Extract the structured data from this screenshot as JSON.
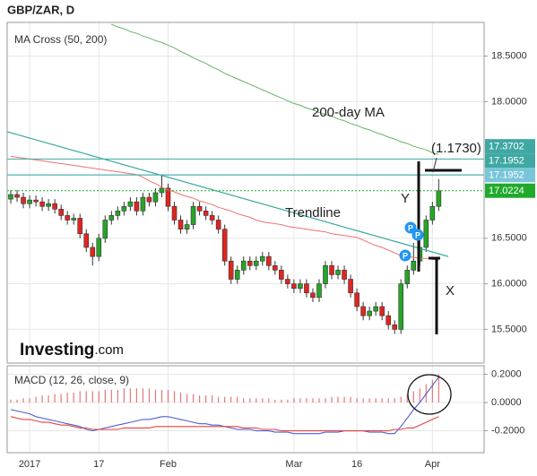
{
  "header": {
    "title": "GBP/ZAR, D"
  },
  "logo": {
    "brand": "Investing",
    "suffix": ".com"
  },
  "annotations": {
    "ma200": "200-day MA",
    "trendline": "Trendline",
    "target": "(1.1730)",
    "y": "Y",
    "x": "X",
    "markers": [
      "P",
      "P",
      "P"
    ]
  },
  "chart_data": [
    {
      "type": "candlestick",
      "title": "MA Cross (50, 200)",
      "ylim": [
        15.13,
        18.87
      ],
      "yticks": [
        {
          "value": 18.5,
          "label": "18.5000"
        },
        {
          "value": 18,
          "label": "18.0000"
        },
        {
          "value": 16.5,
          "label": "16.5000"
        },
        {
          "value": 16,
          "label": "16.0000"
        },
        {
          "value": 15.5,
          "label": "15.5000"
        }
      ],
      "up_color": "#26a526",
      "down_color": "#e0251f",
      "open": [
        16.93,
        16.98,
        16.95,
        16.88,
        16.92,
        16.9,
        16.85,
        16.88,
        16.82,
        16.75,
        16.7,
        16.72,
        16.55,
        16.4,
        16.3,
        16.5,
        16.7,
        16.75,
        16.8,
        16.85,
        16.9,
        16.8,
        16.95,
        16.9,
        17.0,
        17.05,
        16.85,
        16.7,
        16.6,
        16.65,
        16.85,
        16.8,
        16.75,
        16.7,
        16.6,
        16.25,
        16.05,
        16.15,
        16.25,
        16.2,
        16.25,
        16.3,
        16.2,
        16.15,
        16.05,
        16.0,
        15.95,
        16.0,
        15.9,
        15.85,
        16.0,
        16.2,
        16.1,
        16.15,
        16.05,
        15.9,
        15.75,
        15.65,
        15.7,
        15.75,
        15.65,
        15.55,
        15.5,
        16.0,
        16.15,
        16.25,
        16.4,
        16.7,
        16.85
      ],
      "high": [
        17.03,
        17.03,
        17.0,
        16.97,
        16.97,
        16.95,
        16.93,
        16.93,
        16.87,
        16.8,
        16.77,
        16.77,
        16.6,
        16.45,
        16.55,
        16.75,
        16.8,
        16.85,
        16.9,
        16.95,
        16.95,
        17.0,
        17.0,
        17.05,
        17.2,
        17.1,
        16.9,
        16.75,
        16.7,
        16.9,
        16.9,
        16.85,
        16.8,
        16.75,
        16.65,
        16.3,
        16.2,
        16.3,
        16.3,
        16.3,
        16.35,
        16.35,
        16.25,
        16.2,
        16.1,
        16.05,
        16.05,
        16.05,
        15.95,
        16.05,
        16.25,
        16.25,
        16.2,
        16.2,
        16.1,
        15.95,
        15.8,
        15.75,
        15.8,
        15.8,
        15.7,
        15.6,
        16.05,
        16.2,
        16.45,
        16.6,
        16.75,
        16.9,
        17.15
      ],
      "low": [
        16.88,
        16.9,
        16.83,
        16.83,
        16.85,
        16.8,
        16.8,
        16.77,
        16.7,
        16.65,
        16.65,
        16.5,
        16.35,
        16.2,
        16.25,
        16.45,
        16.65,
        16.7,
        16.75,
        16.8,
        16.75,
        16.75,
        16.85,
        16.85,
        16.95,
        16.8,
        16.65,
        16.55,
        16.55,
        16.6,
        16.75,
        16.7,
        16.65,
        16.55,
        16.2,
        16.0,
        16.0,
        16.1,
        16.15,
        16.15,
        16.2,
        16.15,
        16.1,
        16.0,
        15.95,
        15.9,
        15.9,
        15.85,
        15.8,
        15.8,
        15.95,
        16.05,
        16.05,
        16.0,
        15.85,
        15.7,
        15.6,
        15.6,
        15.65,
        15.6,
        15.5,
        15.45,
        15.45,
        15.95,
        16.1,
        16.2,
        16.35,
        16.65,
        16.8
      ],
      "close": [
        16.98,
        16.95,
        16.88,
        16.92,
        16.9,
        16.85,
        16.88,
        16.82,
        16.75,
        16.7,
        16.72,
        16.55,
        16.4,
        16.3,
        16.5,
        16.7,
        16.75,
        16.8,
        16.85,
        16.9,
        16.8,
        16.95,
        16.9,
        17.0,
        17.05,
        16.85,
        16.7,
        16.6,
        16.65,
        16.85,
        16.8,
        16.75,
        16.7,
        16.6,
        16.25,
        16.05,
        16.15,
        16.25,
        16.2,
        16.25,
        16.3,
        16.2,
        16.15,
        16.05,
        16.0,
        15.95,
        16.0,
        15.9,
        15.85,
        16.0,
        16.2,
        16.1,
        16.15,
        16.05,
        15.9,
        15.75,
        15.65,
        15.7,
        15.75,
        15.65,
        15.55,
        15.5,
        16.0,
        16.15,
        16.25,
        16.4,
        16.7,
        16.85,
        17.0224
      ],
      "lines": [
        {
          "color": "#f07070",
          "values": [
            17.4,
            17.39,
            17.38,
            17.37,
            17.36,
            17.35,
            17.34,
            17.33,
            17.32,
            17.31,
            17.3,
            17.29,
            17.28,
            17.27,
            17.26,
            17.25,
            17.24,
            17.23,
            17.22,
            17.21,
            17.2,
            17.17,
            17.13,
            17.1,
            17.06,
            17.03,
            17.01,
            16.98,
            16.96,
            16.94,
            16.91,
            16.89,
            16.87,
            16.84,
            16.82,
            16.8,
            16.77,
            16.75,
            16.73,
            16.7,
            16.68,
            16.67,
            16.66,
            16.65,
            16.63,
            16.62,
            16.61,
            16.6,
            16.59,
            16.58,
            16.57,
            16.55,
            16.54,
            16.53,
            16.52,
            16.51,
            16.48,
            16.45,
            16.42,
            16.4,
            16.37,
            16.34,
            16.31,
            16.3,
            16.29,
            16.28,
            16.28,
            16.27,
            16.26
          ]
        },
        {
          "color": "#66b266",
          "values": [
            null,
            null,
            null,
            null,
            null,
            null,
            null,
            null,
            null,
            null,
            null,
            null,
            null,
            null,
            null,
            null,
            18.85,
            18.82,
            18.8,
            18.77,
            18.75,
            18.72,
            18.7,
            18.67,
            18.65,
            18.62,
            18.59,
            18.55,
            18.52,
            18.48,
            18.45,
            18.42,
            18.38,
            18.35,
            18.31,
            18.28,
            18.25,
            18.22,
            18.19,
            18.16,
            18.13,
            18.1,
            18.07,
            18.04,
            18.01,
            17.98,
            17.96,
            17.93,
            17.91,
            17.88,
            17.86,
            17.84,
            17.81,
            17.79,
            17.76,
            17.74,
            17.71,
            17.69,
            17.66,
            17.64,
            17.61,
            17.59,
            17.56,
            17.54,
            17.51,
            17.49,
            17.47,
            17.44,
            17.42
          ]
        }
      ],
      "trendline": {
        "color": "#3aa9a0",
        "values": [
          17.67,
          16.3
        ]
      },
      "price_lines": [
        {
          "value": 17.3702,
          "color": "#3fa8a3",
          "dotted": false
        },
        {
          "value": 17.1952,
          "color": "#79c6da",
          "dotted": false
        },
        {
          "value": 17.1952,
          "color": "#3fa8a3",
          "dotted": false
        },
        {
          "value": 17.0224,
          "color": "#1faa2c",
          "dotted": true
        }
      ]
    },
    {
      "type": "macd",
      "title": "MACD (12, 26, close, 9)",
      "ylim": [
        -0.355,
        0.26
      ],
      "yticks": [
        {
          "value": 0.2,
          "label": "0.2000"
        },
        {
          "value": 0,
          "label": "0.0000"
        },
        {
          "value": -0.2,
          "label": "-0.2000"
        }
      ],
      "categories": [
        null,
        null,
        null,
        "2017",
        null,
        null,
        null,
        null,
        null,
        null,
        null,
        null,
        null,
        null,
        "17",
        null,
        null,
        null,
        null,
        null,
        null,
        null,
        null,
        null,
        null,
        "Feb",
        null,
        null,
        null,
        null,
        null,
        null,
        null,
        null,
        null,
        null,
        null,
        null,
        null,
        null,
        null,
        null,
        null,
        null,
        null,
        "Mar",
        null,
        null,
        null,
        null,
        null,
        null,
        null,
        null,
        null,
        "16",
        null,
        null,
        null,
        null,
        null,
        null,
        null,
        null,
        null,
        null,
        null,
        "Apr",
        null
      ],
      "histogram": {
        "color": "#e25555",
        "values": [
          0.02,
          0.02,
          0.03,
          0.03,
          0.04,
          0.05,
          0.05,
          0.06,
          0.06,
          0.07,
          0.07,
          0.08,
          0.08,
          0.08,
          0.08,
          0.09,
          0.09,
          0.09,
          0.1,
          0.1,
          0.1,
          0.1,
          0.1,
          0.09,
          0.09,
          0.09,
          0.08,
          0.07,
          0.06,
          0.06,
          0.05,
          0.05,
          0.05,
          0.04,
          0.04,
          0.04,
          0.04,
          0.03,
          0.03,
          0.03,
          0.03,
          0.03,
          0.02,
          0.02,
          0.02,
          0.03,
          0.03,
          0.03,
          0.03,
          0.03,
          0.03,
          0.04,
          0.04,
          0.04,
          0.04,
          0.03,
          0.03,
          0.03,
          0.03,
          0.03,
          0.03,
          0.03,
          0.04,
          0.06,
          0.08,
          0.1,
          0.13,
          0.16,
          0.2
        ]
      },
      "series": [
        {
          "color": "#4b5fd6",
          "values": [
            -0.05,
            -0.06,
            -0.07,
            -0.08,
            -0.1,
            -0.11,
            -0.12,
            -0.13,
            -0.14,
            -0.15,
            -0.16,
            -0.17,
            -0.19,
            -0.2,
            -0.19,
            -0.18,
            -0.17,
            -0.16,
            -0.15,
            -0.14,
            -0.13,
            -0.12,
            -0.12,
            -0.11,
            -0.1,
            -0.1,
            -0.11,
            -0.12,
            -0.13,
            -0.14,
            -0.15,
            -0.15,
            -0.16,
            -0.16,
            -0.17,
            -0.18,
            -0.19,
            -0.19,
            -0.19,
            -0.2,
            -0.2,
            -0.2,
            -0.21,
            -0.21,
            -0.21,
            -0.22,
            -0.22,
            -0.22,
            -0.22,
            -0.22,
            -0.21,
            -0.21,
            -0.21,
            -0.2,
            -0.2,
            -0.2,
            -0.2,
            -0.21,
            -0.21,
            -0.21,
            -0.22,
            -0.22,
            -0.17,
            -0.11,
            -0.05,
            0.0,
            0.06,
            0.12,
            0.18
          ]
        },
        {
          "color": "#e8413f",
          "values": [
            -0.1,
            -0.11,
            -0.12,
            -0.12,
            -0.13,
            -0.14,
            -0.14,
            -0.15,
            -0.16,
            -0.16,
            -0.17,
            -0.18,
            -0.18,
            -0.19,
            -0.19,
            -0.19,
            -0.19,
            -0.19,
            -0.18,
            -0.18,
            -0.18,
            -0.18,
            -0.18,
            -0.17,
            -0.17,
            -0.17,
            -0.17,
            -0.17,
            -0.17,
            -0.17,
            -0.17,
            -0.17,
            -0.17,
            -0.17,
            -0.17,
            -0.17,
            -0.17,
            -0.18,
            -0.18,
            -0.18,
            -0.19,
            -0.19,
            -0.19,
            -0.2,
            -0.2,
            -0.2,
            -0.2,
            -0.2,
            -0.2,
            -0.2,
            -0.2,
            -0.2,
            -0.2,
            -0.2,
            -0.2,
            -0.2,
            -0.2,
            -0.2,
            -0.2,
            -0.2,
            -0.2,
            -0.19,
            -0.19,
            -0.18,
            -0.18,
            -0.16,
            -0.14,
            -0.12,
            -0.1
          ]
        }
      ]
    }
  ]
}
